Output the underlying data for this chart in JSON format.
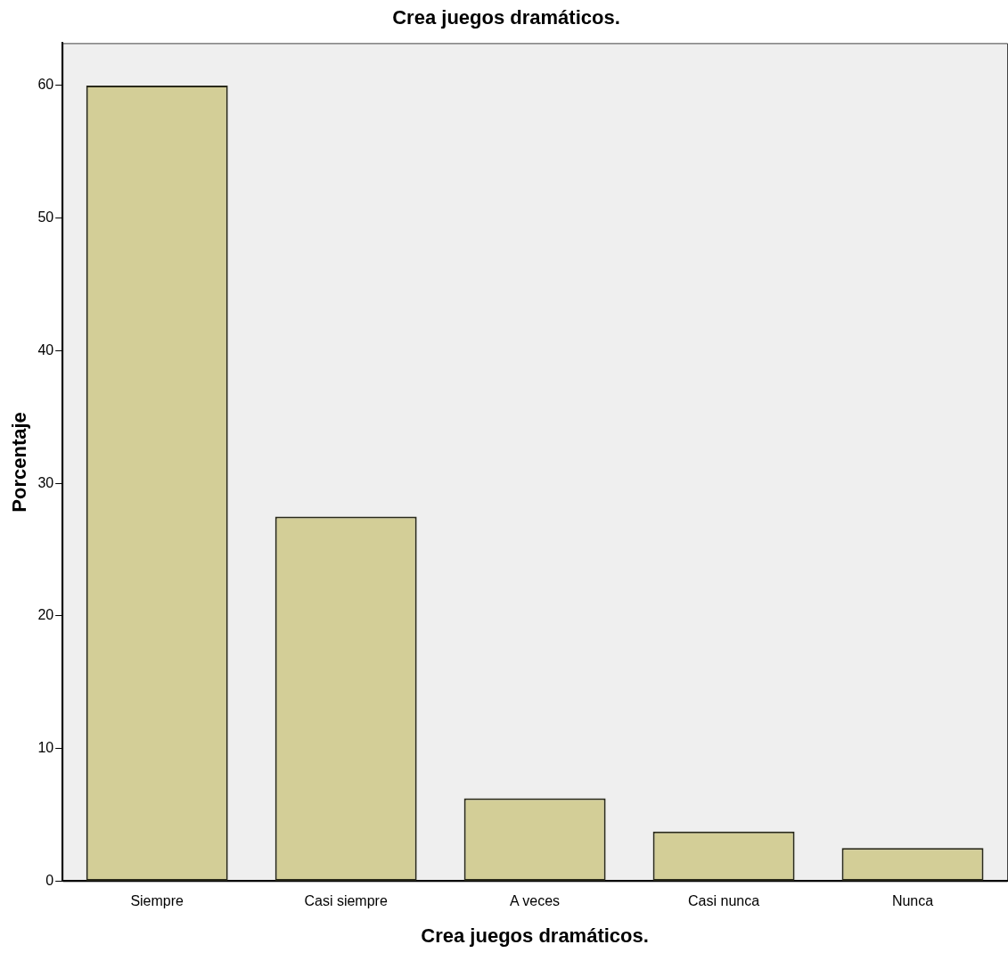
{
  "chart_data": {
    "type": "bar",
    "title": "Crea juegos dramáticos.",
    "xlabel": "Crea juegos dramáticos.",
    "ylabel": "Porcentaje",
    "categories": [
      "Siempre",
      "Casi siempre",
      "A veces",
      "Casi nunca",
      "Nunca"
    ],
    "values": [
      60,
      27.5,
      6.25,
      3.75,
      2.5
    ],
    "color": "#d3ce97",
    "ylim": [
      0,
      63.2
    ],
    "yticks": [
      0,
      10,
      20,
      30,
      40,
      50,
      60
    ],
    "grid": false,
    "legend": false
  }
}
